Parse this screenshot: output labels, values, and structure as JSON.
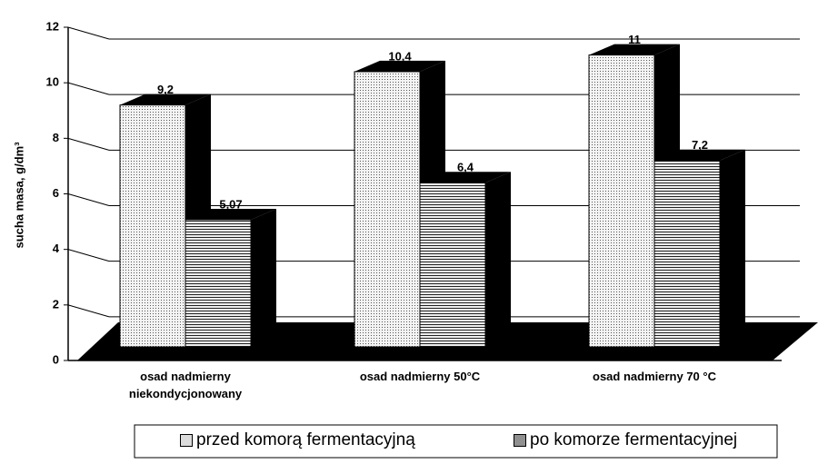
{
  "chart_data": {
    "type": "bar3d",
    "y_label": "sucha masa, g/dm³",
    "categories": [
      "osad nadmierny niekondycjonowany",
      "osad nadmierny 50°C",
      "osad nadmierny 70 °C"
    ],
    "series": [
      {
        "name": "przed komorą fermentacyjną",
        "color": "#dcdcdc",
        "values": [
          9.2,
          10.4,
          11
        ],
        "value_labels": [
          "9,2",
          "10,4",
          "11"
        ]
      },
      {
        "name": "po komorze fermentacyjnej",
        "color": "#909090",
        "values": [
          5.07,
          6.4,
          7.2
        ],
        "value_labels": [
          "5,07",
          "6,4",
          "7,2"
        ]
      }
    ],
    "ylim": [
      0,
      12
    ],
    "yticks": [
      0,
      2,
      4,
      6,
      8,
      10,
      12
    ],
    "grid": true
  }
}
